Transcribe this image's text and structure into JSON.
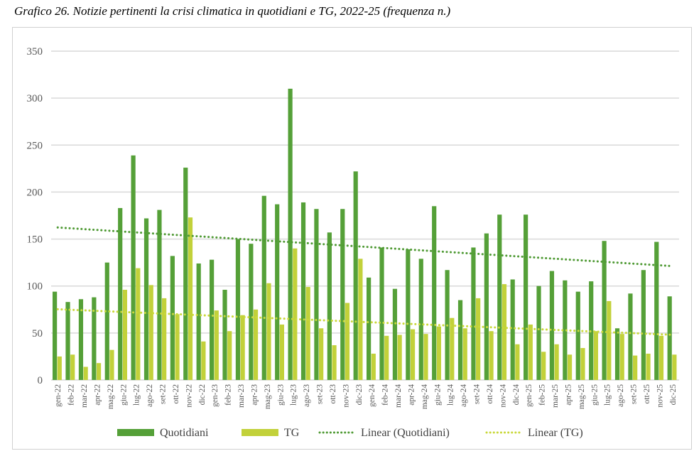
{
  "chart_data": {
    "type": "bar",
    "title": "Grafico 26. Notizie pertinenti la crisi climatica in quotidiani e TG, 2022-25 (frequenza n.)",
    "xlabel": "",
    "ylabel": "",
    "ylim": [
      0,
      350
    ],
    "yticks": [
      0,
      50,
      100,
      150,
      200,
      250,
      300,
      350
    ],
    "grid": true,
    "legend_position": "bottom",
    "categories": [
      "gen-22",
      "feb-22",
      "mar-22",
      "apr-22",
      "mag-22",
      "giu-22",
      "lug-22",
      "ago-22",
      "set-22",
      "ott-22",
      "nov-22",
      "dic-22",
      "gen-23",
      "feb-23",
      "mar-23",
      "apr-23",
      "mag-23",
      "giu-23",
      "lug-23",
      "ago-23",
      "set-23",
      "ott-23",
      "nov-23",
      "dic-23",
      "gen-24",
      "feb-24",
      "mar-24",
      "apr-24",
      "mag-24",
      "giu-24",
      "lug-24",
      "ago-24",
      "set-24",
      "ott-24",
      "nov-24",
      "dic-24",
      "gen-25",
      "feb-25",
      "mar-25",
      "apr-25",
      "mag-25",
      "giu-25",
      "lug-25",
      "ago-25",
      "set-25",
      "ott-25",
      "nov-25",
      "dic-25"
    ],
    "series": [
      {
        "name": "Quotidiani",
        "color": "#55a038",
        "values": [
          94,
          83,
          86,
          88,
          125,
          183,
          239,
          172,
          181,
          132,
          226,
          124,
          128,
          96,
          150,
          145,
          196,
          187,
          310,
          189,
          182,
          157,
          182,
          222,
          109,
          141,
          97,
          139,
          129,
          185,
          117,
          85,
          141,
          156,
          176,
          107,
          176,
          100,
          116,
          106,
          94,
          105,
          148,
          55,
          92,
          117,
          147,
          89
        ]
      },
      {
        "name": "TG",
        "color": "#c2d13a",
        "values": [
          25,
          27,
          14,
          18,
          32,
          96,
          119,
          101,
          87,
          70,
          173,
          41,
          74,
          52,
          69,
          75,
          103,
          59,
          140,
          99,
          55,
          37,
          82,
          129,
          28,
          47,
          48,
          54,
          49,
          57,
          66,
          55,
          87,
          52,
          102,
          38,
          59,
          30,
          38,
          27,
          34,
          52,
          84,
          49,
          26,
          28,
          47,
          27
        ]
      }
    ],
    "trendlines": [
      {
        "name": "Linear (Quotidiani)",
        "of": "Quotidiani",
        "type": "linear",
        "style": "dotted",
        "color": "#4f9a34"
      },
      {
        "name": "Linear (TG)",
        "of": "TG",
        "type": "linear",
        "style": "dotted",
        "color": "#c9d83a"
      }
    ]
  }
}
